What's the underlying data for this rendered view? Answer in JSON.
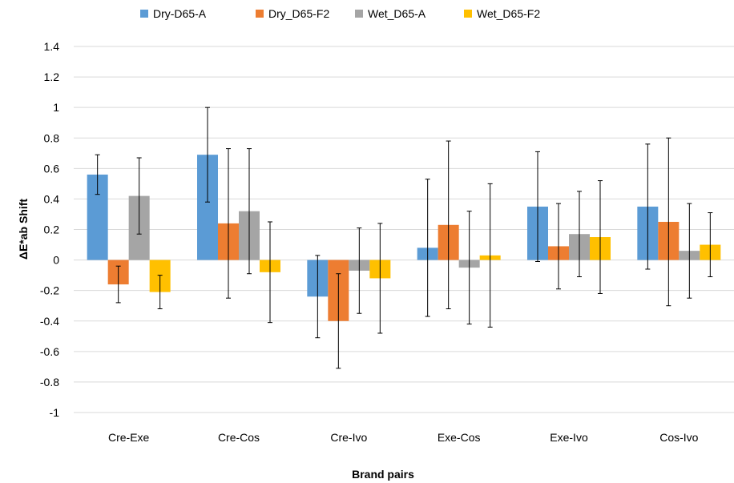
{
  "chart_data": {
    "type": "bar",
    "categories": [
      "Cre-Exe",
      "Cre-Cos",
      "Cre-Ivo",
      "Exe-Cos",
      "Exe-Ivo",
      "Cos-Ivo"
    ],
    "series": [
      {
        "name": "Dry-D65-A",
        "color": "#5B9BD5",
        "values": [
          0.56,
          0.69,
          -0.24,
          0.08,
          0.35,
          0.35
        ],
        "errors": [
          0.13,
          0.31,
          0.27,
          0.45,
          0.36,
          0.41
        ]
      },
      {
        "name": "Dry_D65-F2",
        "color": "#ED7D31",
        "values": [
          -0.16,
          0.24,
          -0.4,
          0.23,
          0.09,
          0.25
        ],
        "errors": [
          0.12,
          0.49,
          0.31,
          0.55,
          0.28,
          0.55
        ]
      },
      {
        "name": "Wet_D65-A",
        "color": "#A5A5A5",
        "values": [
          0.42,
          0.32,
          -0.07,
          -0.05,
          0.17,
          0.06
        ],
        "errors": [
          0.25,
          0.41,
          0.28,
          0.37,
          0.28,
          0.31
        ]
      },
      {
        "name": "Wet_D65-F2",
        "color": "#FFC000",
        "values": [
          -0.21,
          -0.08,
          -0.12,
          0.03,
          0.15,
          0.1
        ],
        "errors": [
          0.11,
          0.33,
          0.36,
          0.47,
          0.37,
          0.21
        ]
      }
    ],
    "xlabel": "Brand pairs",
    "ylabel": "ΔE*ab Shift",
    "ylim": [
      -1,
      1.4
    ],
    "yticks": [
      -1,
      -0.8,
      -0.6,
      -0.4,
      -0.2,
      0,
      0.2,
      0.4,
      0.6,
      0.8,
      1,
      1.2,
      1.4
    ],
    "grid": true,
    "legend": "top"
  }
}
